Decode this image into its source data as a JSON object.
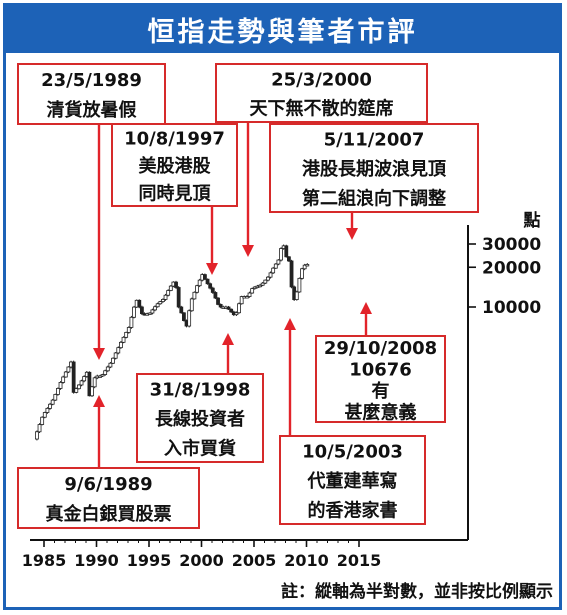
{
  "title": "恒指走勢與筆者市評",
  "ylabel": "點",
  "footnote": "註：縱軸為半對數，並非按比例顯示",
  "colors": {
    "accent": "#1d62b7",
    "annotation_border": "#d62a2a",
    "arrow": "#e2232a",
    "candle": "#222222"
  },
  "chart_data": {
    "type": "line",
    "title": "恒指走勢與筆者市評",
    "xlabel": "",
    "ylabel": "點",
    "x_ticks": [
      1985,
      1990,
      1995,
      2000,
      2005,
      2010,
      2015
    ],
    "y_ticks": [
      10000,
      20000,
      30000
    ],
    "y_scale": "log",
    "xlim": [
      1984,
      2016
    ],
    "grid": false,
    "series": [
      {
        "x": [
          1984.2,
          1985.0,
          1986.0,
          1986.8,
          1987.75,
          1987.85,
          1988.5,
          1989.3,
          1989.43,
          1990.0,
          1990.6,
          1991.5,
          1992.5,
          1993.2,
          1993.9,
          1994.5,
          1995.2,
          1995.9,
          1996.5,
          1997.1,
          1997.6,
          1997.95,
          1998.35,
          1998.65,
          1999.1,
          1999.7,
          2000.2,
          2000.7,
          2001.3,
          2001.8,
          2002.5,
          2003.35,
          2003.9,
          2004.5,
          2005.0,
          2005.8,
          2006.5,
          2007.0,
          2007.5,
          2007.84,
          2008.2,
          2008.5,
          2008.83,
          2009.2,
          2009.6,
          2010.0
        ],
        "y": [
          1000,
          1500,
          2000,
          2800,
          3900,
          2200,
          2600,
          3300,
          2100,
          3000,
          3000,
          3800,
          5500,
          7000,
          11500,
          8700,
          9000,
          10500,
          11500,
          14000,
          16100,
          10000,
          8500,
          6800,
          11000,
          14500,
          17600,
          15000,
          12500,
          10000,
          10000,
          8500,
          12000,
          12000,
          14000,
          14700,
          17000,
          20000,
          23000,
          31600,
          24000,
          22000,
          10676,
          13000,
          19000,
          21000
        ],
        "name": "",
        "style": "candles"
      }
    ],
    "annotations": [
      {
        "date": "23/5/1989",
        "text": "清貨放暑假"
      },
      {
        "date": "9/6/1989",
        "text": "真金白銀買股票"
      },
      {
        "date": "10/8/1997",
        "text": "美股港股 同時見頂"
      },
      {
        "date": "31/8/1998",
        "text": "長線投資者 入市買貨"
      },
      {
        "date": "25/3/2000",
        "text": "天下無不散的筵席"
      },
      {
        "date": "10/5/2003",
        "text": "代董建華寫 的香港家書"
      },
      {
        "date": "5/11/2007",
        "text": "港股長期波浪見頂 第二組浪向下調整"
      },
      {
        "date": "29/10/2008",
        "text": "10676 有 甚麼意義"
      }
    ]
  }
}
